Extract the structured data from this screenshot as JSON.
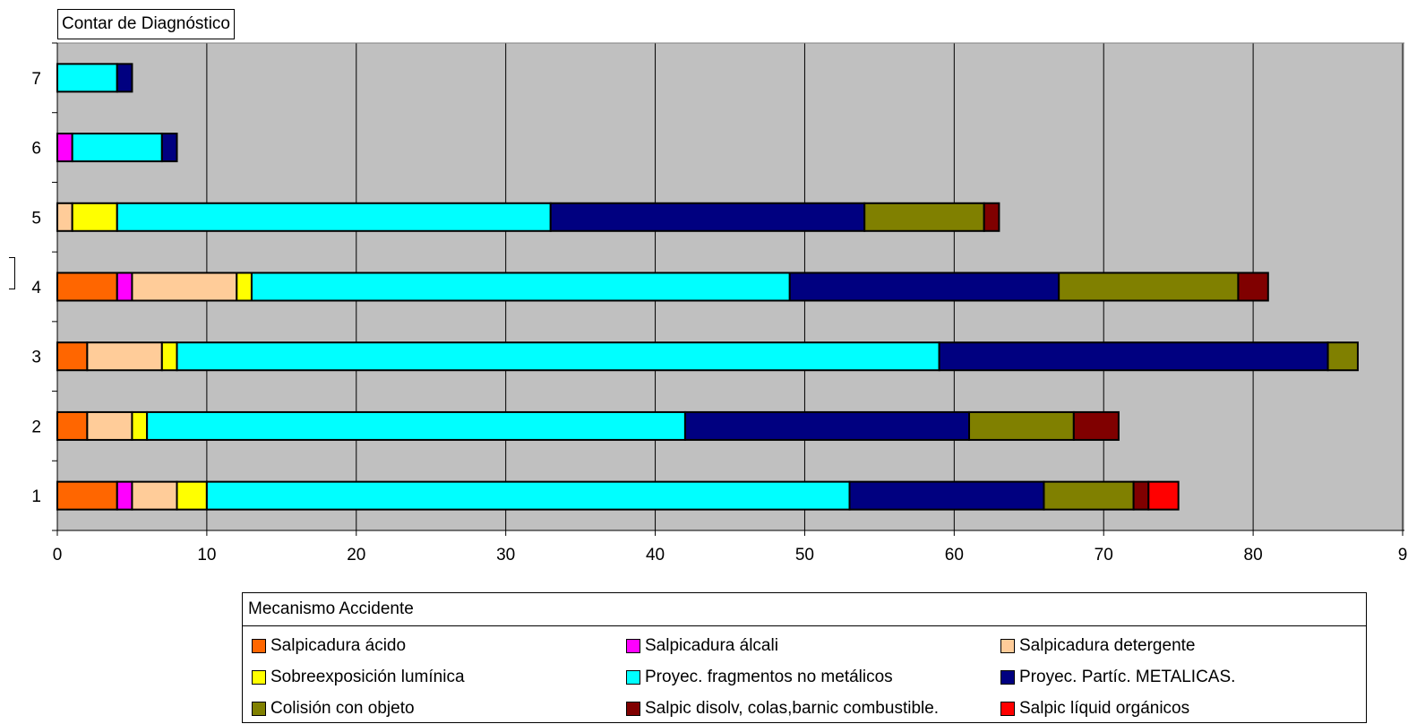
{
  "chart_data": {
    "type": "bar",
    "orientation": "horizontal",
    "stacked": true,
    "title": "Contar de Diagnóstico",
    "xlabel": "",
    "ylabel": "",
    "categories": [
      "1",
      "2",
      "3",
      "4",
      "5",
      "6",
      "7"
    ],
    "xlim": [
      0,
      90
    ],
    "xticks": [
      "0",
      "10",
      "20",
      "30",
      "40",
      "50",
      "60",
      "70",
      "80",
      "9"
    ],
    "grid": true,
    "legend_title": "Mecanismo Accidente",
    "legend_position": "bottom",
    "series": [
      {
        "name": "Salpicadura ácido",
        "color": "#FF6600",
        "values": [
          4,
          2,
          2,
          4,
          0,
          0,
          0
        ]
      },
      {
        "name": "Salpicadura álcali",
        "color": "#FF00FF",
        "values": [
          1,
          0,
          0,
          1,
          0,
          1,
          0
        ]
      },
      {
        "name": "Salpicadura detergente",
        "color": "#FFCC99",
        "values": [
          3,
          3,
          5,
          7,
          1,
          0,
          0
        ]
      },
      {
        "name": "Sobreexposición lumínica",
        "color": "#FFFF00",
        "values": [
          2,
          1,
          1,
          1,
          3,
          0,
          0
        ]
      },
      {
        "name": "Proyec. fragmentos no metálicos",
        "color": "#00FFFF",
        "values": [
          43,
          36,
          51,
          36,
          29,
          6,
          4
        ]
      },
      {
        "name": "Proyec. Partíc. METALICAS.",
        "color": "#000080",
        "values": [
          13,
          19,
          26,
          18,
          21,
          1,
          1
        ]
      },
      {
        "name": "Colisión con objeto",
        "color": "#808000",
        "values": [
          6,
          7,
          2,
          12,
          8,
          0,
          0
        ]
      },
      {
        "name": "Salpic disolv, colas,barnic combustible.",
        "color": "#800000",
        "values": [
          1,
          3,
          0,
          2,
          1,
          0,
          0
        ]
      },
      {
        "name": "Salpic líquid orgánicos",
        "color": "#FF0000",
        "values": [
          2,
          0,
          0,
          0,
          0,
          0,
          0
        ]
      }
    ]
  }
}
